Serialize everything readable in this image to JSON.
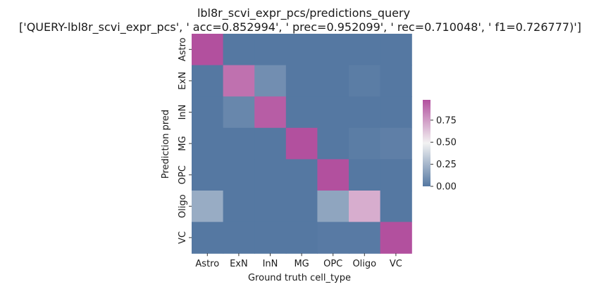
{
  "chart_data": {
    "type": "heatmap",
    "title": "lbl8r_scvi_expr_pcs/predictions_query",
    "subtitle": "['QUERY-lbl8r_scvi_expr_pcs', ' acc=0.852994', '  prec=0.952099', ' rec=0.710048', ' f1=0.726777)']",
    "xlabel": "Ground truth cell_type",
    "ylabel": "Prediction pred",
    "x_categories": [
      "Astro",
      "ExN",
      "InN",
      "MG",
      "OPC",
      "Oligo",
      "VC"
    ],
    "y_categories": [
      "Astro",
      "ExN",
      "InN",
      "MG",
      "OPC",
      "Oligo",
      "VC"
    ],
    "values": [
      [
        0.98,
        0.0,
        0.0,
        0.0,
        0.0,
        0.0,
        0.0
      ],
      [
        0.0,
        0.88,
        0.09,
        0.0,
        0.0,
        0.02,
        0.0
      ],
      [
        0.0,
        0.06,
        0.94,
        0.0,
        0.0,
        0.0,
        0.0
      ],
      [
        0.0,
        0.0,
        0.0,
        0.99,
        0.0,
        0.02,
        0.03
      ],
      [
        0.0,
        0.0,
        0.0,
        0.0,
        0.99,
        0.0,
        0.0
      ],
      [
        0.21,
        0.0,
        0.0,
        0.0,
        0.18,
        0.7,
        0.0
      ],
      [
        0.0,
        0.0,
        0.0,
        0.0,
        0.01,
        0.01,
        0.99
      ]
    ],
    "colorbar": {
      "min": 0.0,
      "max": 0.98,
      "ticks": [
        0.0,
        0.25,
        0.5,
        0.75
      ],
      "tick_labels": [
        "0.00",
        "0.25",
        "0.50",
        "0.75"
      ]
    },
    "colors": {
      "low": "#5578a2",
      "mid": "#f2f2f2",
      "high": "#b2509e"
    },
    "grid": false,
    "legend": "colorbar-right"
  }
}
